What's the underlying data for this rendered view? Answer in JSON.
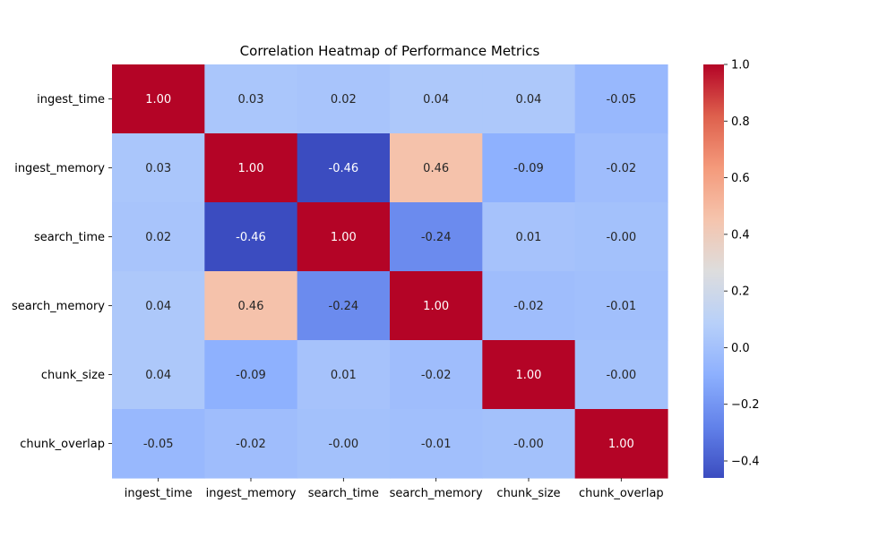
{
  "chart_data": {
    "type": "heatmap",
    "title": "Correlation Heatmap of Performance Metrics",
    "xlabel": "",
    "ylabel": "",
    "categories": [
      "ingest_time",
      "ingest_memory",
      "search_time",
      "search_memory",
      "chunk_size",
      "chunk_overlap"
    ],
    "rows": [
      "ingest_time",
      "ingest_memory",
      "search_time",
      "search_memory",
      "chunk_size",
      "chunk_overlap"
    ],
    "values": [
      [
        1.0,
        0.03,
        0.02,
        0.04,
        0.04,
        -0.05
      ],
      [
        0.03,
        1.0,
        -0.46,
        0.46,
        -0.09,
        -0.02
      ],
      [
        0.02,
        -0.46,
        1.0,
        -0.24,
        0.01,
        -0.0
      ],
      [
        0.04,
        0.46,
        -0.24,
        1.0,
        -0.02,
        -0.01
      ],
      [
        0.04,
        -0.09,
        0.01,
        -0.02,
        1.0,
        -0.0
      ],
      [
        -0.05,
        -0.02,
        -0.0,
        -0.01,
        -0.0,
        1.0
      ]
    ],
    "cell_labels": [
      [
        "1.00",
        "0.03",
        "0.02",
        "0.04",
        "0.04",
        "-0.05"
      ],
      [
        "0.03",
        "1.00",
        "-0.46",
        "0.46",
        "-0.09",
        "-0.02"
      ],
      [
        "0.02",
        "-0.46",
        "1.00",
        "-0.24",
        "0.01",
        "-0.00"
      ],
      [
        "0.04",
        "0.46",
        "-0.24",
        "1.00",
        "-0.02",
        "-0.01"
      ],
      [
        "0.04",
        "-0.09",
        "0.01",
        "-0.02",
        "1.00",
        "-0.00"
      ],
      [
        "-0.05",
        "-0.02",
        "-0.00",
        "-0.01",
        "-0.00",
        "1.00"
      ]
    ],
    "colormap": "coolwarm",
    "colorbar": {
      "range": [
        -0.46,
        1.0
      ],
      "ticks": [
        -0.4,
        -0.2,
        0.0,
        0.2,
        0.4,
        0.6,
        0.8,
        1.0
      ],
      "tick_labels": [
        "−0.4",
        "−0.2",
        "0.0",
        "0.2",
        "0.4",
        "0.6",
        "0.8",
        "1.0"
      ],
      "placement": "right"
    },
    "grid": false
  }
}
